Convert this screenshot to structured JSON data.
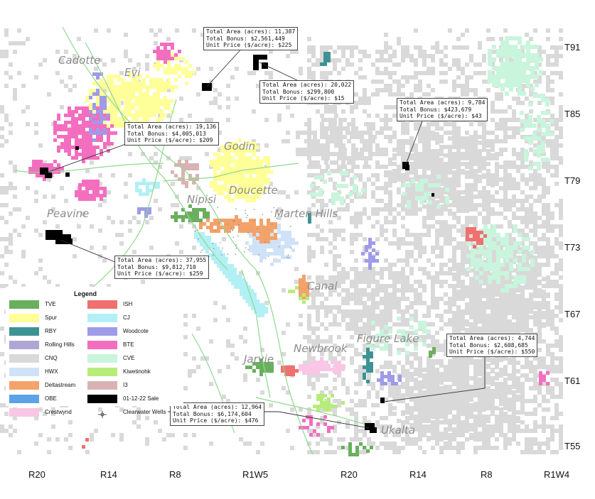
{
  "colors": {
    "roads": "#8fd88f",
    "cnq": "#d9d9d9",
    "callout_line": "#333333"
  },
  "places": [
    "Cadotte",
    "Evi",
    "Godin",
    "Doucette",
    "Nipisi",
    "Marten Hills",
    "Peavine",
    "Canal",
    "Figure Lake",
    "Newbrook",
    "Jarvie",
    "Ukalta"
  ],
  "townships": [
    "T91",
    "T85",
    "T79",
    "T73",
    "T67",
    "T61",
    "T55"
  ],
  "ranges": [
    "R20",
    "R14",
    "R8",
    "R1W5",
    "R20",
    "R14",
    "R8",
    "R1W4"
  ],
  "callouts": [
    {
      "area": "Total Area (acres): 11,387",
      "bonus": "Total Bonus: $2,561,449",
      "price": "Unit Price ($/acre): $225"
    },
    {
      "area": "Total Area (acres): 20,022",
      "bonus": "Total Bonus: $299,800",
      "price": "Unit Price ($/acre): $15"
    },
    {
      "area": "Total Area (acres): 19,136",
      "bonus": "Total Bonus: $4,005,013",
      "price": "Unit Price ($/acre): $209"
    },
    {
      "area": "Total Area (acres): 9,784",
      "bonus": "Total Bonus: $423,679",
      "price": "Unit Price ($/acre): $43"
    },
    {
      "area": "Total Area (acres): 37,955",
      "bonus": "Total Bonus: $9,812,710",
      "price": "Unit Price ($/acre): $259"
    },
    {
      "area": "Total Area (acres): 4,744",
      "bonus": "Total Bonus: $2,608,685",
      "price": "Unit Price ($/acre): $550"
    },
    {
      "area": "Total Area (acres): 12,964",
      "bonus": "Total Bonus: $6,174,604",
      "price": "Unit Price ($/acre): $476"
    }
  ],
  "legend": {
    "title": "Legend",
    "items": [
      {
        "label": "TVE",
        "color": "#6aaf5e"
      },
      {
        "label": "ISH",
        "color": "#f07070"
      },
      {
        "label": "Spur",
        "color": "#ffff99"
      },
      {
        "label": "CJ",
        "color": "#b3f0f5"
      },
      {
        "label": "RBY",
        "color": "#3f9294"
      },
      {
        "label": "Woodcote",
        "color": "#9f9be8"
      },
      {
        "label": "Rolling Hills",
        "color": "#b0a6d4"
      },
      {
        "label": "BTE",
        "color": "#f46ec0"
      },
      {
        "label": "CNQ",
        "color": "#d9d9d9"
      },
      {
        "label": "CVE",
        "color": "#c8f5dc"
      },
      {
        "label": "HWX",
        "color": "#cfe2f7"
      },
      {
        "label": "Kiwetinohk",
        "color": "#b6ed79"
      },
      {
        "label": "Deltastream",
        "color": "#f3a26a"
      },
      {
        "label": "I3",
        "color": "#d9b3b3"
      },
      {
        "label": "OBE",
        "color": "#5ba3e6"
      },
      {
        "label": "01-12-22 Sale",
        "color": "#000000"
      },
      {
        "label": "Crestwynd",
        "color": "#f9c6e6"
      },
      {
        "label": "Clearwater Wells",
        "color": "#555555",
        "icon": "well-symbol-icon"
      }
    ]
  }
}
